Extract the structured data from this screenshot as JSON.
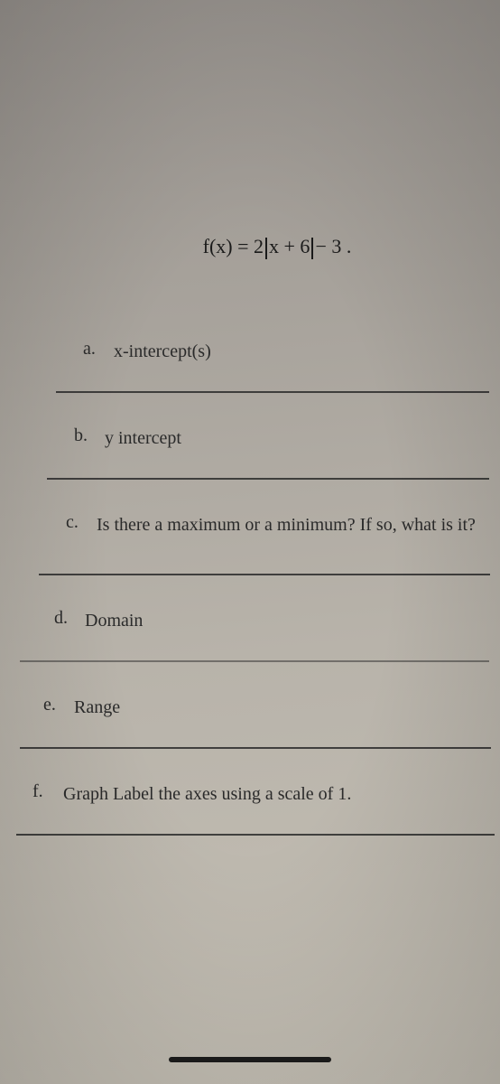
{
  "formula": {
    "lhs": "f(x) = ",
    "coef": "2",
    "inside": "x + 6",
    "tail": "− 3 ."
  },
  "questions": {
    "a": {
      "label": "a.",
      "text": "x-intercept(s)"
    },
    "b": {
      "label": "b.",
      "text": "y intercept"
    },
    "c": {
      "label": "c.",
      "text": "Is there a maximum or a minimum? If so, what is it?"
    },
    "d": {
      "label": "d.",
      "text": "Domain"
    },
    "e": {
      "label": "e.",
      "text": "Range"
    },
    "f": {
      "label": "f.",
      "text": "Graph Label the axes using a scale of 1."
    }
  },
  "colors": {
    "text": "#1a1a1a",
    "rule": "#2a2a2a",
    "bg_top": "#9a9590",
    "bg_bottom": "#c5c0b5"
  },
  "typography": {
    "body_fontsize": 20,
    "formula_fontsize": 22,
    "font_family": "serif"
  }
}
